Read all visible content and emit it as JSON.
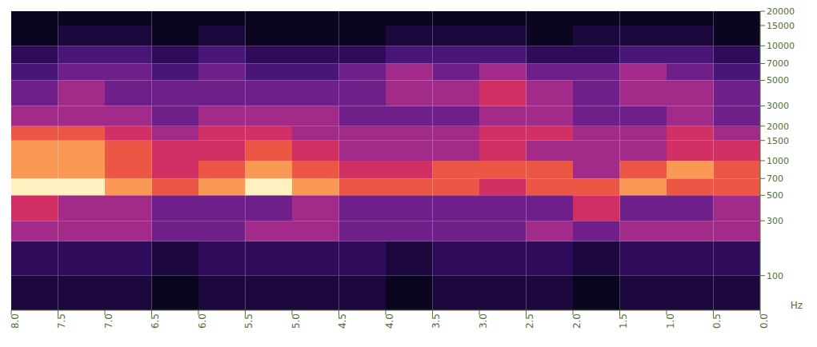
{
  "chart_data": {
    "type": "heatmap",
    "y_label": "Hz",
    "log": "y",
    "grid": false,
    "xlim": [
      8,
      0
    ],
    "xticks": [
      {
        "value": 8,
        "label": "8.0"
      },
      7.5,
      {
        "value": 7,
        "label": "7.0"
      },
      6.5,
      {
        "value": 6,
        "label": "6.0"
      },
      5.5,
      {
        "value": 5,
        "label": "5.0"
      },
      4.5,
      {
        "value": 4,
        "label": "4.0"
      },
      3.5,
      {
        "value": 3,
        "label": "3.0"
      },
      2.5,
      {
        "value": 2,
        "label": "2.0"
      },
      1.5,
      {
        "value": 1,
        "label": "1.0"
      },
      0.5,
      {
        "value": 0,
        "label": "0.0"
      }
    ],
    "ylim": [
      50,
      20000
    ],
    "yticks": [
      100,
      300,
      500,
      700,
      1000,
      1500,
      2000,
      3000,
      5000,
      7000,
      10000,
      15000,
      20000
    ],
    "x_bins": [
      0,
      0.5,
      1,
      1.5,
      2,
      2.5,
      3,
      3.5,
      4,
      4.5,
      5,
      5.5,
      6,
      6.5,
      7,
      7.5,
      8
    ],
    "y_bins": [
      50,
      100,
      200,
      300,
      500,
      700,
      1000,
      1500,
      2000,
      3000,
      5000,
      7000,
      10000,
      15000,
      20000
    ],
    "cells": [
      [
        2,
        2,
        2,
        1,
        2,
        2,
        2,
        1,
        2,
        2,
        2,
        2,
        1,
        2,
        2,
        2
      ],
      [
        3,
        3,
        3,
        2,
        3,
        3,
        3,
        2,
        3,
        3,
        3,
        3,
        2,
        3,
        3,
        3
      ],
      [
        6,
        6,
        6,
        5,
        6,
        5,
        5,
        5,
        5,
        6,
        6,
        5,
        5,
        6,
        6,
        6
      ],
      [
        6,
        5,
        5,
        7,
        5,
        5,
        5,
        5,
        5,
        6,
        5,
        5,
        5,
        6,
        6,
        7
      ],
      [
        8,
        8,
        9,
        8,
        8,
        7,
        8,
        8,
        8,
        9,
        10,
        9,
        8,
        9,
        10,
        10
      ],
      [
        8,
        9,
        8,
        6,
        8,
        8,
        8,
        7,
        7,
        8,
        9,
        8,
        7,
        8,
        9,
        9
      ],
      [
        7,
        7,
        6,
        6,
        6,
        7,
        6,
        6,
        6,
        7,
        8,
        7,
        7,
        8,
        9,
        9
      ],
      [
        6,
        7,
        6,
        6,
        7,
        7,
        6,
        6,
        6,
        6,
        7,
        7,
        6,
        7,
        8,
        8
      ],
      [
        5,
        6,
        5,
        5,
        6,
        6,
        5,
        5,
        5,
        6,
        6,
        6,
        5,
        6,
        6,
        6
      ],
      [
        5,
        6,
        6,
        5,
        6,
        7,
        6,
        6,
        5,
        5,
        5,
        5,
        5,
        5,
        6,
        5
      ],
      [
        4,
        5,
        6,
        5,
        5,
        6,
        5,
        6,
        5,
        4,
        4,
        5,
        4,
        5,
        5,
        4
      ],
      [
        3,
        4,
        4,
        3,
        3,
        4,
        4,
        4,
        3,
        3,
        3,
        4,
        3,
        4,
        4,
        3
      ],
      [
        1,
        2,
        2,
        2,
        1,
        2,
        2,
        2,
        1,
        1,
        1,
        2,
        1,
        2,
        2,
        1
      ],
      [
        1,
        1,
        1,
        1,
        1,
        1,
        1,
        1,
        1,
        1,
        1,
        1,
        1,
        1,
        1,
        1
      ]
    ]
  }
}
